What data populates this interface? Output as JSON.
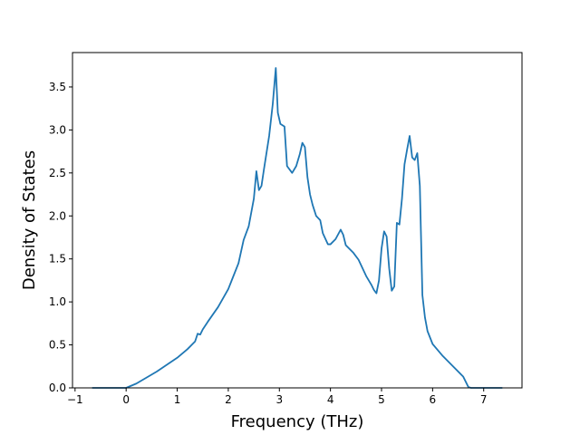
{
  "chart_data": {
    "type": "line",
    "title": "",
    "xlabel": "Frequency (THz)",
    "ylabel": "Density of States",
    "xlim": [
      -1.05,
      7.75
    ],
    "ylim": [
      0.0,
      3.9
    ],
    "xticks": [
      -1,
      0,
      1,
      2,
      3,
      4,
      5,
      6,
      7
    ],
    "xtick_labels": [
      "−1",
      "0",
      "1",
      "2",
      "3",
      "4",
      "5",
      "6",
      "7"
    ],
    "yticks": [
      0.0,
      0.5,
      1.0,
      1.5,
      2.0,
      2.5,
      3.0,
      3.5
    ],
    "ytick_labels": [
      "0.0",
      "0.5",
      "1.0",
      "1.5",
      "2.0",
      "2.5",
      "3.0",
      "3.5"
    ],
    "grid": false,
    "legend": "none",
    "series": [
      {
        "color": "#1f77b4",
        "x": [
          -0.65,
          -0.3,
          0.0,
          0.2,
          0.4,
          0.6,
          0.8,
          1.0,
          1.2,
          1.35,
          1.4,
          1.45,
          1.5,
          1.6,
          1.8,
          2.0,
          2.2,
          2.3,
          2.4,
          2.5,
          2.55,
          2.6,
          2.65,
          2.7,
          2.8,
          2.87,
          2.93,
          2.97,
          3.02,
          3.1,
          3.15,
          3.25,
          3.33,
          3.4,
          3.45,
          3.5,
          3.55,
          3.6,
          3.65,
          3.72,
          3.8,
          3.85,
          3.95,
          4.0,
          4.1,
          4.2,
          4.25,
          4.3,
          4.45,
          4.55,
          4.7,
          4.8,
          4.85,
          4.9,
          4.95,
          5.0,
          5.05,
          5.1,
          5.15,
          5.2,
          5.25,
          5.3,
          5.35,
          5.4,
          5.45,
          5.5,
          5.55,
          5.6,
          5.65,
          5.7,
          5.75,
          5.8,
          5.85,
          5.9,
          6.0,
          6.2,
          6.4,
          6.6,
          6.7,
          6.75,
          7.0,
          7.35
        ],
        "y": [
          0.0,
          0.0,
          0.0,
          0.05,
          0.12,
          0.19,
          0.27,
          0.35,
          0.45,
          0.54,
          0.63,
          0.62,
          0.68,
          0.77,
          0.94,
          1.15,
          1.45,
          1.72,
          1.88,
          2.2,
          2.52,
          2.3,
          2.35,
          2.55,
          2.93,
          3.3,
          3.72,
          3.2,
          3.07,
          3.04,
          2.58,
          2.5,
          2.58,
          2.72,
          2.85,
          2.8,
          2.45,
          2.25,
          2.13,
          2.0,
          1.95,
          1.8,
          1.67,
          1.67,
          1.73,
          1.84,
          1.78,
          1.66,
          1.57,
          1.49,
          1.3,
          1.2,
          1.14,
          1.1,
          1.25,
          1.62,
          1.82,
          1.76,
          1.39,
          1.13,
          1.18,
          1.92,
          1.9,
          2.2,
          2.6,
          2.77,
          2.93,
          2.68,
          2.65,
          2.73,
          2.35,
          1.08,
          0.82,
          0.66,
          0.51,
          0.37,
          0.25,
          0.13,
          0.01,
          0.0,
          0.0,
          0.0
        ]
      }
    ]
  }
}
